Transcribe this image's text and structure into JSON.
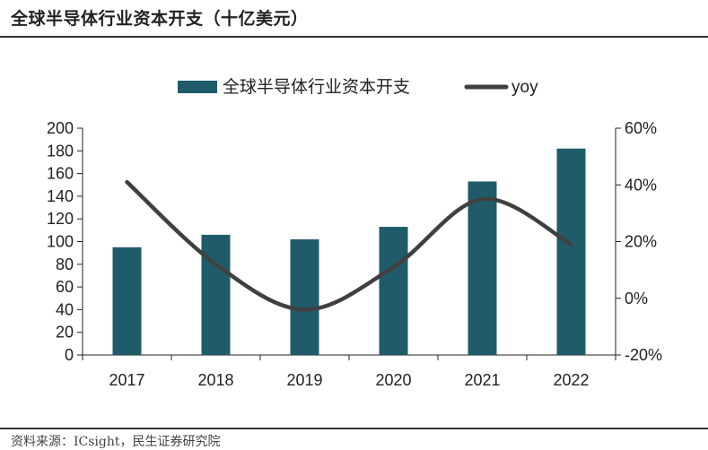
{
  "page_title": "全球半导体行业资本开支（十亿美元）",
  "source": "资料来源：ICsight，民生证券研究院",
  "colors": {
    "bar": "#1f5b69",
    "line": "#404040",
    "axis": "#222222",
    "text": "#222222"
  },
  "chart_data": {
    "type": "bar",
    "categories": [
      "2017",
      "2018",
      "2019",
      "2020",
      "2021",
      "2022"
    ],
    "series": [
      {
        "name": "全球半导体行业资本开支",
        "kind": "bar",
        "axis": "left",
        "values": [
          95,
          106,
          102,
          113,
          153,
          182
        ]
      },
      {
        "name": "yoy",
        "kind": "line",
        "axis": "right",
        "smooth": true,
        "values": [
          0.41,
          0.12,
          -0.04,
          0.11,
          0.35,
          0.19
        ]
      }
    ],
    "y_left": {
      "min": 0,
      "max": 200,
      "ticks": [
        0,
        20,
        40,
        60,
        80,
        100,
        120,
        140,
        160,
        180,
        200
      ]
    },
    "y_right": {
      "min": -0.2,
      "max": 0.6,
      "ticks": [
        "-20%",
        "0%",
        "20%",
        "40%",
        "60%"
      ],
      "tick_values": [
        -0.2,
        0,
        0.2,
        0.4,
        0.6
      ]
    },
    "legend": [
      "全球半导体行业资本开支",
      "yoy"
    ],
    "legend_position": "top-center",
    "grid": false
  }
}
